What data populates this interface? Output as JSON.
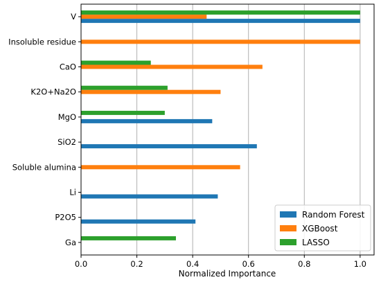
{
  "chart_data": {
    "type": "bar",
    "orientation": "horizontal",
    "categories": [
      "V",
      "Insoluble residue",
      "CaO",
      "K2O+Na2O",
      "MgO",
      "SiO2",
      "Soluble alumina",
      "Li",
      "P2O5",
      "Ga"
    ],
    "series": [
      {
        "name": "Random Forest",
        "color": "#1f77b4",
        "values": [
          1.0,
          null,
          null,
          null,
          0.47,
          0.63,
          null,
          0.49,
          0.41,
          null
        ]
      },
      {
        "name": "XGBoost",
        "color": "#ff7f0e",
        "values": [
          0.45,
          1.0,
          0.65,
          0.5,
          null,
          null,
          0.57,
          null,
          null,
          null
        ]
      },
      {
        "name": "LASSO",
        "color": "#2ca02c",
        "values": [
          1.0,
          null,
          0.25,
          0.31,
          0.3,
          null,
          null,
          null,
          null,
          0.34
        ]
      }
    ],
    "xlabel": "Normalized Importance",
    "ylabel": "",
    "xlim": [
      0,
      1.05
    ],
    "xticks": [
      "0.0",
      "0.2",
      "0.4",
      "0.6",
      "0.8",
      "1.0"
    ],
    "grid": "vertical",
    "legend": "lower-right"
  }
}
